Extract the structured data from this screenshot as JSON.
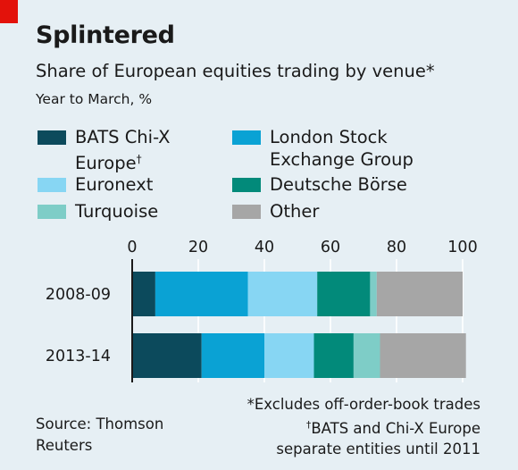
{
  "chart_data": {
    "type": "bar",
    "orientation": "horizontal",
    "stacked": true,
    "title": "Splintered",
    "subtitle": "Share of European equities trading by venue*",
    "unit_label": "Year to March, %",
    "categories": [
      "2008-09",
      "2013-14"
    ],
    "xlim": [
      0,
      100
    ],
    "xticks": [
      "0",
      "20",
      "40",
      "60",
      "80",
      "100"
    ],
    "grid": true,
    "legend_placement": "top",
    "series": [
      {
        "name": "BATS Chi-X Europe",
        "name_line2": "Europe",
        "name_line1": "BATS Chi-X",
        "dagger": "†",
        "color": "#0c4a5c",
        "values": [
          7,
          21
        ]
      },
      {
        "name": "London Stock Exchange Group",
        "name_line1": "London Stock",
        "name_line2": "Exchange Group",
        "color": "#0aa2d4",
        "values": [
          28,
          19
        ]
      },
      {
        "name": "Euronext",
        "color": "#87d6f3",
        "values": [
          21,
          15
        ]
      },
      {
        "name": "Deutsche Börse",
        "color": "#028a7a",
        "values": [
          16,
          12
        ]
      },
      {
        "name": "Turquoise",
        "color": "#7ecdc7",
        "values": [
          2,
          8
        ]
      },
      {
        "name": "Other",
        "color": "#a6a6a6",
        "values": [
          26,
          26
        ]
      }
    ]
  },
  "notes": {
    "line1": "*Excludes off-order-book trades",
    "dagger": "†",
    "line2": "BATS and Chi-X Europe",
    "line3": "separate entities until 2011"
  },
  "source": "Source: Thomson Reuters",
  "accent_color": "#e3120b"
}
